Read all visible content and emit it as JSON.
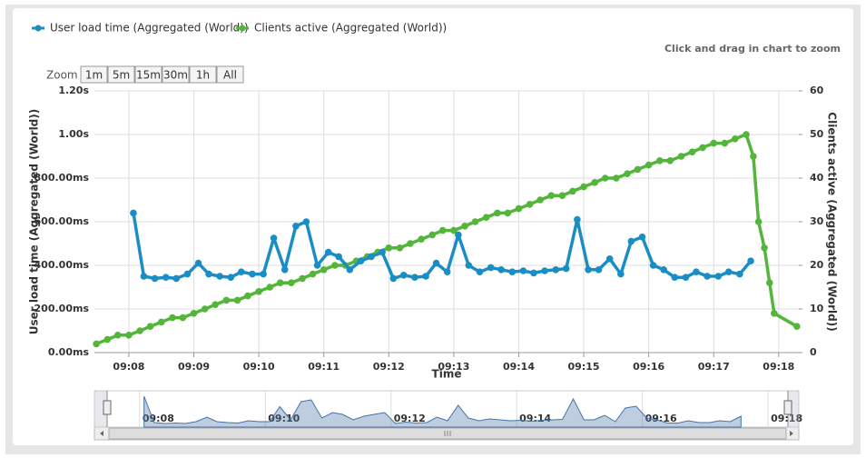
{
  "chart_data": {
    "type": "line",
    "annotation": "Click and drag in chart to zoom",
    "zoom_label": "Zoom",
    "zoom_buttons": [
      "1m",
      "5m",
      "15m",
      "30m",
      "1h",
      "All"
    ],
    "xlabel": "Time",
    "ylabel": "User load time (Aggregated (World))",
    "y2label": "Clients active (Aggregated (World))",
    "xlim": [
      7.47,
      18.31
    ],
    "xticks": [
      {
        "value": 8,
        "label": "09:08"
      },
      {
        "value": 9,
        "label": "09:09"
      },
      {
        "value": 10,
        "label": "09:10"
      },
      {
        "value": 11,
        "label": "09:11"
      },
      {
        "value": 12,
        "label": "09:12"
      },
      {
        "value": 13,
        "label": "09:13"
      },
      {
        "value": 14,
        "label": "09:14"
      },
      {
        "value": 15,
        "label": "09:15"
      },
      {
        "value": 16,
        "label": "09:16"
      },
      {
        "value": 17,
        "label": "09:17"
      },
      {
        "value": 18,
        "label": "09:18"
      }
    ],
    "ylim": [
      0,
      1200
    ],
    "yticks": [
      {
        "value": 0,
        "label": "0.00ms"
      },
      {
        "value": 200,
        "label": "200.00ms"
      },
      {
        "value": 400,
        "label": "400.00ms"
      },
      {
        "value": 600,
        "label": "600.00ms"
      },
      {
        "value": 800,
        "label": "800.00ms"
      },
      {
        "value": 1000,
        "label": "1.00s"
      },
      {
        "value": 1200,
        "label": "1.20s"
      }
    ],
    "y2lim": [
      0,
      60
    ],
    "y2ticks": [
      0,
      10,
      20,
      30,
      40,
      50,
      60
    ],
    "grid": true,
    "legend": "top-left",
    "series": [
      {
        "name": "User load time (Aggregated (World))",
        "color": "#1a8ec4",
        "x": [
          8.07,
          8.23,
          8.4,
          8.57,
          8.73,
          8.9,
          9.07,
          9.23,
          9.4,
          9.57,
          9.73,
          9.9,
          10.07,
          10.23,
          10.4,
          10.57,
          10.73,
          10.9,
          11.07,
          11.23,
          11.4,
          11.57,
          11.73,
          11.9,
          12.07,
          12.23,
          12.4,
          12.57,
          12.73,
          12.9,
          13.07,
          13.23,
          13.4,
          13.57,
          13.73,
          13.9,
          14.07,
          14.23,
          14.4,
          14.57,
          14.73,
          14.9,
          15.07,
          15.23,
          15.4,
          15.57,
          15.73,
          15.9,
          16.07,
          16.23,
          16.4,
          16.57,
          16.73,
          16.9,
          17.07,
          17.23,
          17.4,
          17.57
        ],
        "values": [
          640,
          350,
          340,
          345,
          340,
          360,
          410,
          360,
          350,
          345,
          370,
          360,
          360,
          525,
          380,
          580,
          600,
          400,
          460,
          440,
          380,
          420,
          440,
          460,
          340,
          355,
          345,
          350,
          410,
          370,
          540,
          400,
          370,
          390,
          380,
          370,
          375,
          365,
          375,
          380,
          385,
          610,
          380,
          380,
          430,
          360,
          510,
          530,
          400,
          380,
          345,
          345,
          370,
          350,
          350,
          370,
          360,
          420
        ]
      },
      {
        "name": "Clients active (Aggregated (World))",
        "color": "#53b63b",
        "axis": "y2",
        "x": [
          7.5,
          7.67,
          7.83,
          8,
          8.17,
          8.33,
          8.5,
          8.67,
          8.83,
          9,
          9.17,
          9.33,
          9.5,
          9.67,
          9.83,
          10,
          10.17,
          10.33,
          10.5,
          10.67,
          10.83,
          11,
          11.17,
          11.33,
          11.5,
          11.67,
          11.83,
          12,
          12.17,
          12.33,
          12.5,
          12.67,
          12.83,
          13,
          13.17,
          13.33,
          13.5,
          13.67,
          13.83,
          14,
          14.17,
          14.33,
          14.5,
          14.67,
          14.83,
          15,
          15.17,
          15.33,
          15.5,
          15.67,
          15.83,
          16,
          16.17,
          16.33,
          16.5,
          16.67,
          16.83,
          17,
          17.17,
          17.33,
          17.5,
          17.61,
          17.69,
          17.78,
          17.86,
          17.93,
          18.28
        ],
        "values": [
          2,
          3,
          4,
          4,
          5,
          6,
          7,
          8,
          8,
          9,
          10,
          11,
          12,
          12,
          13,
          14,
          15,
          16,
          16,
          17,
          18,
          19,
          20,
          20,
          21,
          22,
          23,
          24,
          24,
          25,
          26,
          27,
          28,
          28,
          29,
          30,
          31,
          32,
          32,
          33,
          34,
          35,
          36,
          36,
          37,
          38,
          39,
          40,
          40,
          41,
          42,
          43,
          44,
          44,
          45,
          46,
          47,
          48,
          48,
          49,
          50,
          45,
          30,
          24,
          16,
          9,
          6
        ]
      }
    ],
    "navigator": {
      "xlim": [
        7.28,
        18.49
      ],
      "ylim": [
        300,
        700
      ],
      "xticks": [
        {
          "value": 8,
          "label": "09:08"
        },
        {
          "value": 10,
          "label": "09:10"
        },
        {
          "value": 12,
          "label": "09:12"
        },
        {
          "value": 14,
          "label": "09:14"
        },
        {
          "value": 16,
          "label": "09:16"
        },
        {
          "value": 18,
          "label": "09:18"
        }
      ]
    }
  }
}
